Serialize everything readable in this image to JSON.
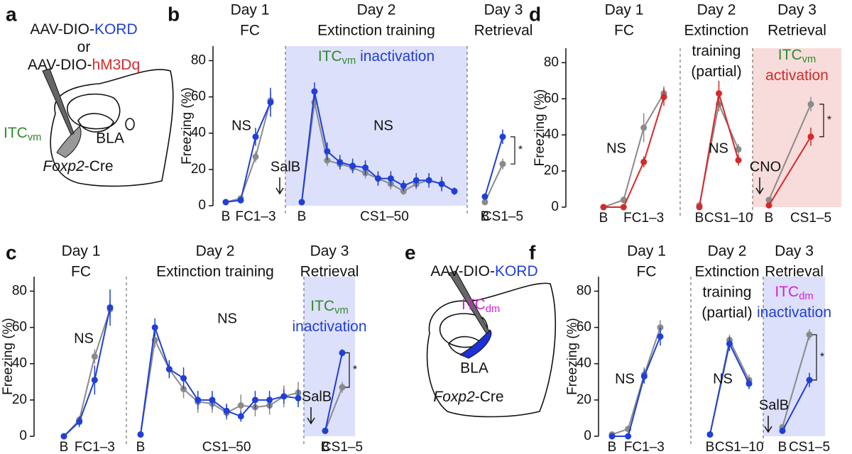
{
  "panel_labels": [
    "a",
    "b",
    "c",
    "d",
    "e",
    "f"
  ],
  "diagrams": [
    {
      "virus": [
        [
          {
            "text": "AAV-DIO-"
          },
          {
            "text": "KORD",
            "color": "#1f3fd6"
          }
        ],
        [
          {
            "text": "or"
          }
        ],
        [
          {
            "text": "AAV-DIO-"
          },
          {
            "text": "hM3Dq",
            "color": "#d42a2a"
          }
        ]
      ],
      "target": [
        {
          "text": "ITC",
          "color": "#2e8b2e"
        },
        {
          "text": "vm",
          "sub": true,
          "color": "#2e8b2e"
        }
      ],
      "region": "BLA",
      "line": [
        {
          "text": "Foxp2",
          "italic": true
        },
        {
          "text": "-Cre"
        }
      ]
    },
    {
      "virus": [
        [
          {
            "text": "AAV-DIO-"
          },
          {
            "text": "KORD",
            "color": "#1f3fd6"
          }
        ]
      ],
      "target": [
        {
          "text": "ITC",
          "color": "#d61fd6"
        },
        {
          "text": "dm",
          "sub": true,
          "color": "#d61fd6"
        }
      ],
      "region": "BLA",
      "line": [
        {
          "text": "Foxp2",
          "italic": true
        },
        {
          "text": "-Cre"
        }
      ]
    }
  ],
  "chart_data": [
    {
      "type": "line",
      "ylabel": "Freezing (%)",
      "ylim": [
        0,
        88
      ],
      "yticks": [
        0,
        20,
        40,
        60,
        80
      ],
      "shade_segment": 1,
      "shade_color": "#dde0fa",
      "shade_label": [
        [
          {
            "text": "ITC",
            "color": "#2e8b2e"
          },
          {
            "text": "vm",
            "sub": true,
            "color": "#2e8b2e"
          },
          {
            "text": " inactivation",
            "color": "#1f3fd6"
          }
        ]
      ],
      "annotations": [
        {
          "text": "NS"
        },
        {
          "text": "NS"
        },
        {
          "text": "SalB"
        },
        {
          "text": "*"
        }
      ],
      "segments": [
        {
          "headers": [
            "Day 1",
            "FC"
          ],
          "categories": [
            "B",
            "FC1–3",
            null,
            null
          ],
          "series": [
            {
              "color": "#8a8a8a",
              "values": [
                2,
                4,
                27,
                58
              ],
              "errors": [
                1,
                1,
                3,
                5
              ]
            },
            {
              "color": "#1f3fd6",
              "values": [
                2,
                3,
                38,
                57
              ],
              "errors": [
                1,
                1,
                5,
                8
              ]
            }
          ]
        },
        {
          "headers": [
            "Day 2",
            "Extinction training"
          ],
          "categories": [
            "B",
            "CS1–50",
            null,
            null,
            null,
            null,
            null,
            null,
            null,
            null,
            null,
            null,
            null
          ],
          "series": [
            {
              "color": "#8a8a8a",
              "values": [
                2,
                57,
                25,
                23,
                21,
                18,
                15,
                12,
                8,
                12,
                14,
                12,
                8
              ],
              "errors": [
                1,
                3,
                3,
                3,
                3,
                3,
                3,
                3,
                2,
                3,
                3,
                3,
                2
              ]
            },
            {
              "color": "#1f3fd6",
              "values": [
                2,
                63,
                30,
                24,
                22,
                21,
                15,
                15,
                11,
                14,
                14,
                12,
                8
              ],
              "errors": [
                1,
                5,
                5,
                4,
                4,
                4,
                4,
                4,
                3,
                4,
                4,
                4,
                2
              ]
            }
          ]
        },
        {
          "headers": [
            "Day 3",
            "Retrieval"
          ],
          "categories": [
            "B",
            "CS1–5"
          ],
          "series": [
            {
              "color": "#8a8a8a",
              "values": [
                2,
                23
              ],
              "errors": [
                1,
                3
              ]
            },
            {
              "color": "#1f3fd6",
              "values": [
                5,
                38
              ],
              "errors": [
                1,
                4
              ]
            }
          ]
        }
      ]
    },
    {
      "type": "line",
      "ylabel": "Freezing (%)",
      "ylim": [
        0,
        88
      ],
      "yticks": [
        0,
        20,
        40,
        60,
        80
      ],
      "shade_segment": 2,
      "shade_color": "#dde0fa",
      "shade_label": [
        [
          {
            "text": "ITC",
            "color": "#2e8b2e"
          },
          {
            "text": "vm",
            "sub": true,
            "color": "#2e8b2e"
          }
        ],
        [
          {
            "text": "inactivation",
            "color": "#1f3fd6"
          }
        ]
      ],
      "annotations": [
        {
          "text": "NS"
        },
        {
          "text": "NS"
        },
        {
          "text": "SalB"
        },
        {
          "text": "*"
        }
      ],
      "segments": [
        {
          "headers": [
            "Day 1",
            "FC"
          ],
          "categories": [
            "B",
            "FC1–3",
            null,
            null
          ],
          "series": [
            {
              "color": "#8a8a8a",
              "values": [
                0,
                9,
                44,
                70
              ],
              "errors": [
                1,
                2,
                4,
                5
              ]
            },
            {
              "color": "#1f3fd6",
              "values": [
                0,
                8,
                31,
                71
              ],
              "errors": [
                1,
                3,
                8,
                10
              ]
            }
          ]
        },
        {
          "headers": [
            "Day 2",
            "Extinction training"
          ],
          "categories": [
            "B",
            "CS1–50",
            null,
            null,
            null,
            null,
            null,
            null,
            null,
            null,
            null,
            null
          ],
          "series": [
            {
              "color": "#8a8a8a",
              "values": [
                1,
                53,
                37,
                26,
                19,
                18,
                13,
                17,
                16,
                17,
                22,
                24
              ],
              "errors": [
                1,
                4,
                4,
                5,
                6,
                5,
                4,
                6,
                5,
                5,
                6,
                6
              ]
            },
            {
              "color": "#1f3fd6",
              "values": [
                1,
                60,
                37,
                32,
                20,
                20,
                14,
                11,
                20,
                20,
                22,
                21
              ],
              "errors": [
                1,
                5,
                5,
                6,
                5,
                5,
                4,
                3,
                5,
                5,
                4,
                5
              ]
            }
          ]
        },
        {
          "headers": [
            "Day 3",
            "Retrieval"
          ],
          "categories": [
            "B",
            "CS1–5"
          ],
          "series": [
            {
              "color": "#8a8a8a",
              "values": [
                3,
                27
              ],
              "errors": [
                1,
                3
              ]
            },
            {
              "color": "#1f3fd6",
              "values": [
                3,
                46
              ],
              "errors": [
                1,
                2
              ]
            }
          ]
        }
      ]
    },
    {
      "type": "line",
      "ylabel": "Freezing (%)",
      "ylim": [
        0,
        88
      ],
      "yticks": [
        0,
        20,
        40,
        60,
        80
      ],
      "shade_segment": 2,
      "shade_color": "#f7dcdb",
      "shade_label": [
        [
          {
            "text": "ITC",
            "color": "#2e8b2e"
          },
          {
            "text": "vm",
            "sub": true,
            "color": "#2e8b2e"
          }
        ],
        [
          {
            "text": "activation",
            "color": "#d42a2a"
          }
        ]
      ],
      "annotations": [
        {
          "text": "NS"
        },
        {
          "text": "NS"
        },
        {
          "text": "CNO"
        },
        {
          "text": "*"
        }
      ],
      "segments": [
        {
          "headers": [
            "Day 1",
            "FC"
          ],
          "categories": [
            "B",
            "FC1–3",
            null,
            null
          ],
          "series": [
            {
              "color": "#8a8a8a",
              "values": [
                0,
                4,
                44,
                63
              ],
              "errors": [
                0.5,
                2,
                8,
                4
              ]
            },
            {
              "color": "#d42a2a",
              "values": [
                0,
                0,
                25,
                61
              ],
              "errors": [
                0.5,
                0.5,
                3,
                5
              ]
            }
          ]
        },
        {
          "headers": [
            "Day 2",
            "Extinction",
            "training",
            "(partial)"
          ],
          "categories": [
            "B",
            "CS1–10",
            null
          ],
          "series": [
            {
              "color": "#8a8a8a",
              "values": [
                1,
                57,
                32
              ],
              "errors": [
                0.5,
                4,
                3
              ]
            },
            {
              "color": "#d42a2a",
              "values": [
                0,
                63,
                26
              ],
              "errors": [
                0.5,
                7,
                3
              ]
            }
          ]
        },
        {
          "headers": [
            "Day 3",
            "Retrieval"
          ],
          "categories": [
            "B",
            "CS1–5"
          ],
          "series": [
            {
              "color": "#8a8a8a",
              "values": [
                4,
                57
              ],
              "errors": [
                1,
                4
              ]
            },
            {
              "color": "#d42a2a",
              "values": [
                1,
                39
              ],
              "errors": [
                1,
                5
              ]
            }
          ]
        }
      ]
    },
    {
      "type": "line",
      "ylabel": "Freezing (%)",
      "ylim": [
        0,
        88
      ],
      "yticks": [
        0,
        20,
        40,
        60,
        80
      ],
      "shade_segment": 2,
      "shade_color": "#dde0fa",
      "shade_label": [
        [
          {
            "text": "ITC",
            "color": "#d61fd6"
          },
          {
            "text": "dm",
            "sub": true,
            "color": "#d61fd6"
          }
        ],
        [
          {
            "text": "inactivation",
            "color": "#1f3fd6"
          }
        ]
      ],
      "annotations": [
        {
          "text": "NS"
        },
        {
          "text": "NS"
        },
        {
          "text": "SalB"
        },
        {
          "text": "*"
        }
      ],
      "segments": [
        {
          "headers": [
            "Day 1",
            "FC"
          ],
          "categories": [
            "B",
            "FC1–3",
            null,
            null
          ],
          "series": [
            {
              "color": "#8a8a8a",
              "values": [
                1,
                4,
                34,
                60
              ],
              "errors": [
                0.5,
                2,
                4,
                4
              ]
            },
            {
              "color": "#1f3fd6",
              "values": [
                0,
                0,
                33,
                55
              ],
              "errors": [
                0.5,
                0.5,
                4,
                5
              ]
            }
          ]
        },
        {
          "headers": [
            "Day 2",
            "Extinction",
            "training",
            "(partial)"
          ],
          "categories": [
            "B",
            "CS1–10",
            null
          ],
          "series": [
            {
              "color": "#8a8a8a",
              "values": [
                1,
                53,
                31
              ],
              "errors": [
                0.5,
                3,
                3
              ]
            },
            {
              "color": "#1f3fd6",
              "values": [
                1,
                51,
                29
              ],
              "errors": [
                0.5,
                4,
                3
              ]
            }
          ]
        },
        {
          "headers": [
            "Day 3",
            "Retrieval"
          ],
          "categories": [
            "B",
            "CS1–5"
          ],
          "series": [
            {
              "color": "#8a8a8a",
              "values": [
                5,
                56
              ],
              "errors": [
                1,
                3
              ]
            },
            {
              "color": "#1f3fd6",
              "values": [
                3,
                31
              ],
              "errors": [
                1,
                4
              ]
            }
          ]
        }
      ]
    }
  ]
}
